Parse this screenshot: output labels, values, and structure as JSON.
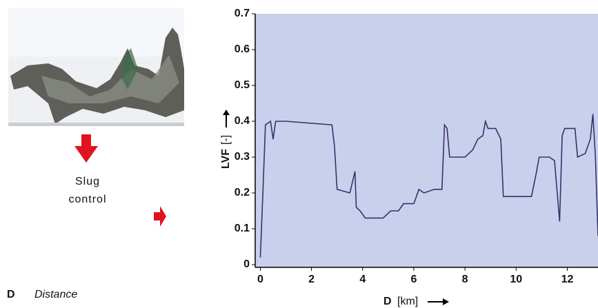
{
  "chart_data": {
    "type": "line",
    "x": [
      0,
      0.1,
      0.2,
      0.4,
      0.5,
      0.6,
      1,
      2.8,
      2.9,
      3,
      3.5,
      3.7,
      3.75,
      3.9,
      4.1,
      4.8,
      5.1,
      5.4,
      5.6,
      6,
      6.2,
      6.4,
      6.8,
      7.1,
      7.2,
      7.3,
      7.4,
      8,
      8.3,
      8.5,
      8.7,
      8.8,
      8.9,
      9.2,
      9.4,
      9.5,
      10.6,
      10.8,
      10.9,
      11.3,
      11.5,
      11.7,
      11.8,
      11.9,
      12.3,
      12.4,
      12.7,
      12.9,
      13.0,
      13.1,
      13.2
    ],
    "values": [
      0.02,
      0.2,
      0.39,
      0.4,
      0.35,
      0.4,
      0.4,
      0.39,
      0.33,
      0.21,
      0.2,
      0.26,
      0.16,
      0.15,
      0.13,
      0.13,
      0.15,
      0.15,
      0.17,
      0.17,
      0.21,
      0.2,
      0.21,
      0.21,
      0.39,
      0.38,
      0.3,
      0.3,
      0.32,
      0.35,
      0.36,
      0.4,
      0.38,
      0.38,
      0.35,
      0.19,
      0.19,
      0.26,
      0.3,
      0.3,
      0.29,
      0.12,
      0.36,
      0.38,
      0.38,
      0.3,
      0.31,
      0.35,
      0.42,
      0.3,
      0.08
    ],
    "color": "#3b2f6b",
    "background": "#c9d0ec",
    "y_label": "LVF",
    "y_unit": "[-]",
    "x_label": "D",
    "x_unit": "[km]",
    "xlim": [
      -0.2,
      13.2
    ],
    "ylim": [
      0,
      0.7
    ],
    "xticks": [
      0,
      2,
      4,
      6,
      8,
      10,
      12
    ],
    "yticks": [
      0,
      0.1,
      0.2,
      0.3,
      0.4,
      0.5,
      0.6,
      0.7
    ]
  },
  "annotation": {
    "lines": [
      "Slug",
      "control"
    ]
  },
  "caption": {
    "symbol": "D",
    "text": "Distance"
  }
}
